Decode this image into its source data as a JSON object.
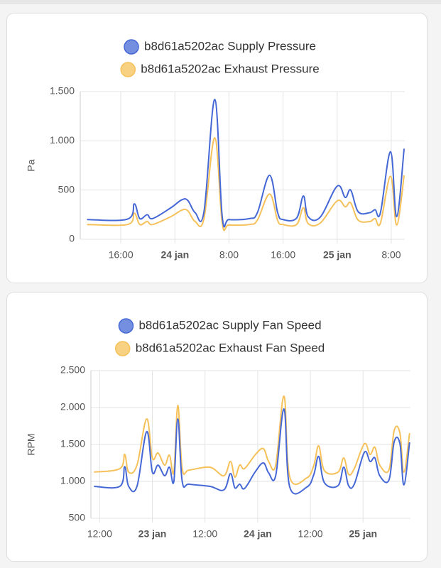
{
  "chart_data": [
    {
      "type": "line",
      "ylabel": "Pa",
      "x": [
        -13,
        -7,
        -6,
        -5.2,
        -4.1,
        -3.3,
        -0.6,
        1,
        1.9,
        3,
        4.3,
        5.9,
        7,
        8,
        11,
        12.2,
        14,
        15.2,
        16,
        18,
        19,
        19.7,
        21.5,
        24,
        25.2,
        26,
        27.1,
        28.8,
        29.6,
        30.4,
        31.9,
        32.8,
        33.9
      ],
      "xlim": [
        -14,
        34
      ],
      "xticks": [
        {
          "value": -8,
          "label": "16:00"
        },
        {
          "value": 0,
          "label": "24 jan"
        },
        {
          "value": 8,
          "label": "8:00"
        },
        {
          "value": 16,
          "label": "16:00"
        },
        {
          "value": 24,
          "label": "25 jan"
        },
        {
          "value": 32,
          "label": "8:00"
        }
      ],
      "ylim": [
        0,
        1500
      ],
      "yticks": [
        0,
        500,
        {
          "value": 1000,
          "label": "1.000"
        },
        {
          "value": 1500,
          "label": "1.500"
        }
      ],
      "grid": true,
      "series": [
        {
          "name": "b8d61a5202ac Supply Pressure",
          "color": "#4568d6",
          "values": [
            200,
            205,
            360,
            210,
            250,
            210,
            320,
            400,
            395,
            270,
            280,
            1420,
            230,
            200,
            210,
            270,
            650,
            270,
            200,
            215,
            440,
            230,
            225,
            540,
            425,
            500,
            280,
            270,
            300,
            270,
            890,
            230,
            920
          ]
        },
        {
          "name": "b8d61a5202ac Exhaust Pressure",
          "color": "#f5c15a",
          "values": [
            150,
            150,
            265,
            150,
            180,
            150,
            230,
            295,
            290,
            180,
            210,
            1030,
            165,
            145,
            150,
            195,
            460,
            190,
            150,
            150,
            320,
            160,
            165,
            390,
            330,
            370,
            195,
            180,
            210,
            165,
            640,
            145,
            650
          ]
        }
      ]
    },
    {
      "type": "line",
      "ylabel": "RPM",
      "x": [
        -37.3,
        -31.4,
        -30.3,
        -29.4,
        -27.5,
        -25.3,
        -24,
        -22.7,
        -21.2,
        -20.1,
        -19.1,
        -18.2,
        -17.2,
        -15.6,
        -10.9,
        -7.7,
        -6.2,
        -5.2,
        -4.1,
        -3,
        -0.5,
        1.3,
        2.5,
        4.1,
        6,
        7.3,
        11.2,
        12.8,
        13.9,
        15.2,
        18.3,
        19.6,
        20.7,
        22,
        24.3,
        25.6,
        26.7,
        27.8,
        29.9,
        31.1,
        32.4,
        33.3,
        34.6
      ],
      "xlim": [
        -38,
        34.8
      ],
      "xticks": [
        {
          "value": -36,
          "label": "12:00"
        },
        {
          "value": -24,
          "label": "23 jan"
        },
        {
          "value": -12,
          "label": "12:00"
        },
        {
          "value": 0,
          "label": "24 jan"
        },
        {
          "value": 12,
          "label": "12:00"
        },
        {
          "value": 24,
          "label": "25 jan"
        }
      ],
      "ylim": [
        500,
        2500
      ],
      "yticks": [
        500,
        {
          "value": 1000,
          "label": "1.000"
        },
        {
          "value": 1500,
          "label": "1.500"
        },
        {
          "value": 2000,
          "label": "2.000"
        },
        {
          "value": 2500,
          "label": "2.500"
        }
      ],
      "grid": true,
      "series": [
        {
          "name": "b8d61a5202ac Supply Fan Speed",
          "color": "#4568d6",
          "values": [
            933,
            933,
            1200,
            933,
            933,
            1673,
            1125,
            1220,
            1077,
            1192,
            1000,
            1846,
            1000,
            962,
            933,
            885,
            1106,
            913,
            962,
            904,
            1135,
            1250,
            1115,
            1077,
            1980,
            923,
            923,
            1096,
            1337,
            981,
            942,
            1192,
            942,
            962,
            1394,
            1269,
            1317,
            1077,
            1019,
            1538,
            1510,
            952,
            1529
          ]
        },
        {
          "name": "b8d61a5202ac Exhaust Fan Speed",
          "color": "#f5c15a",
          "values": [
            1125,
            1173,
            1365,
            1125,
            1221,
            1846,
            1317,
            1385,
            1221,
            1355,
            1125,
            2029,
            1173,
            1154,
            1192,
            1077,
            1269,
            1058,
            1221,
            1173,
            1365,
            1442,
            1269,
            1221,
            2154,
            1058,
            1048,
            1221,
            1481,
            1144,
            1125,
            1317,
            1096,
            1173,
            1510,
            1365,
            1462,
            1221,
            1154,
            1692,
            1654,
            1125,
            1654
          ]
        }
      ]
    }
  ]
}
